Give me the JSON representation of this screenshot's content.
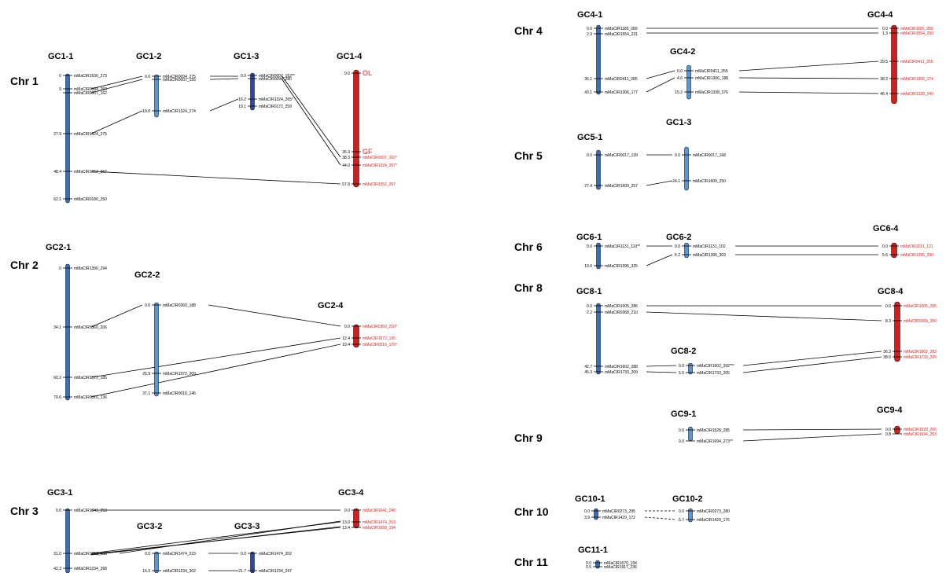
{
  "colors": {
    "group1_bar": "#3a6fb5",
    "group2_bar": "#5a97d8",
    "group3_bar": "#2a4aa8",
    "group4_bar": "#cf2020",
    "bar_outline": "#1a1a1a",
    "red_text": "#e31a1c"
  },
  "chromosomes": [
    {
      "name": "Chr 1"
    },
    {
      "name": "Chr 2"
    },
    {
      "name": "Chr 3"
    },
    {
      "name": "Chr 4"
    },
    {
      "name": "Chr 5"
    },
    {
      "name": "Chr 6"
    },
    {
      "name": "Chr 8"
    },
    {
      "name": "Chr 9"
    },
    {
      "name": "Chr 10"
    },
    {
      "name": "Chr 11"
    }
  ],
  "linkage_groups": [
    {
      "name": "GC1-1",
      "group": 1,
      "markers": [
        {
          "pos": "0",
          "label": "mMaCIR1630_273"
        },
        {
          "pos": "9",
          "label": "mMaCIR0094_269"
        },
        {
          "pos": "",
          "label": "mMaCIR0007_162"
        },
        {
          "pos": "27.9",
          "label": "mMaCIR1324_275"
        },
        {
          "pos": "48.4",
          "label": "mMaCIR1052_267"
        },
        {
          "pos": "62.1",
          "label": "mMaCIR0180_250"
        }
      ]
    },
    {
      "name": "GC1-2",
      "group": 2,
      "markers": [
        {
          "pos": "0.0",
          "label": "mMaCIR0094_275"
        },
        {
          "pos": "",
          "label": "mMaCIR0007_155"
        },
        {
          "pos": "19.8",
          "label": "mMaCIR1324_274"
        }
      ]
    },
    {
      "name": "GC1-3",
      "group": 3,
      "markers": [
        {
          "pos": "0.0",
          "label": "mMaCIR0007_152**"
        },
        {
          "pos": "",
          "label": "mMaCIR0094_280"
        },
        {
          "pos": "16.2",
          "label": "mMaCIR1324_265*"
        },
        {
          "pos": "19.1",
          "label": "mMaCIR0172_259"
        }
      ]
    },
    {
      "name": "GC1-4",
      "group": 4,
      "markers": [
        {
          "pos": "0.0",
          "label": "OL"
        },
        {
          "pos": "35.3",
          "label": "GF"
        },
        {
          "pos": "38.3",
          "label": "mMaCIR0007_162*"
        },
        {
          "pos": "44.0",
          "label": "mMaCIR1324_267*"
        },
        {
          "pos": "57.8",
          "label": "mMaCIR1052_267"
        }
      ]
    },
    {
      "name": "GC2-1",
      "group": 1,
      "markers": [
        {
          "pos": ".0",
          "label": "mMaCIR1390_294"
        },
        {
          "pos": "34.1",
          "label": "mMaCIR0360_206"
        },
        {
          "pos": "60.2",
          "label": "mMaCIR1572_185"
        },
        {
          "pos": "70.6",
          "label": "mMaCIR0016_136"
        }
      ]
    },
    {
      "name": "GC2-2",
      "group": 2,
      "markers": [
        {
          "pos": "0.0",
          "label": "mMaCIR0360_188"
        },
        {
          "pos": "25.9",
          "label": "mMaCIR1572_209"
        },
        {
          "pos": "37.1",
          "label": "mMaCIR0016_146"
        }
      ]
    },
    {
      "name": "GC2-4",
      "group": 4,
      "markers": [
        {
          "pos": "0.0",
          "label": "mMaCIR0360_210*"
        },
        {
          "pos": "12.4",
          "label": "mMaCIR1572_195"
        },
        {
          "pos": "19.4",
          "label": "mMaCIR0016_170*"
        }
      ]
    },
    {
      "name": "GC3-1",
      "group": 1,
      "markers": [
        {
          "pos": "0.0",
          "label": "mMaCIR1641_253"
        },
        {
          "pos": "31.0",
          "label": "mMaCIR1658_198"
        },
        {
          "pos": "42.3",
          "label": "mMaCIR1234_268"
        }
      ]
    },
    {
      "name": "GC3-2",
      "group": 2,
      "markers": [
        {
          "pos": "0.0",
          "label": "mMaCIR1474_223"
        },
        {
          "pos": "16.3",
          "label": "mMaCIR1234_302"
        }
      ]
    },
    {
      "name": "GC3-3",
      "group": 3,
      "markers": [
        {
          "pos": "0.0",
          "label": "mMaCIR1474_202"
        },
        {
          "pos": "21.7",
          "label": "mMaCIR1234_247"
        }
      ]
    },
    {
      "name": "GC3-4",
      "group": 4,
      "markers": [
        {
          "pos": "0.0",
          "label": "mMaCIR1641_248"
        },
        {
          "pos": "13.0",
          "label": "mMaCIR1474_213"
        },
        {
          "pos": "13.4",
          "label": "mMaCIR1658_194"
        }
      ]
    },
    {
      "name": "GC4-1",
      "group": 1,
      "markers": [
        {
          "pos": "0.0",
          "label": "mMaCIR1185_289"
        },
        {
          "pos": "2.9",
          "label": "mMaCIR1554_231"
        },
        {
          "pos": "36.1",
          "label": "mMaCIR0411_285"
        },
        {
          "pos": "43.1",
          "label": "mMaCIR1306_177"
        }
      ]
    },
    {
      "name": "GC4-2",
      "group": 2,
      "markers": [
        {
          "pos": "0.0",
          "label": "mMaCIR0411_255"
        },
        {
          "pos": "4.6",
          "label": "mMaCIR1306_188"
        },
        {
          "pos": "15.2",
          "label": "mMaCIR1338_276"
        }
      ]
    },
    {
      "name": "GC4-4",
      "group": 4,
      "markers": [
        {
          "pos": "0.0",
          "label": "mMaCIR1185_289"
        },
        {
          "pos": "1.3",
          "label": "mMaCIR1554_250"
        },
        {
          "pos": "29.5",
          "label": "mMaCIR0411_265"
        },
        {
          "pos": "38.2",
          "label": "mMaCIR1306_174"
        },
        {
          "pos": "46.4",
          "label": "mMaCIR1338_249"
        }
      ]
    },
    {
      "name": "GC5-1",
      "group": 1,
      "markers": [
        {
          "pos": "0.0",
          "label": "mMaCIR0017_139"
        },
        {
          "pos": "27.4",
          "label": "mMaCIR1609_257"
        }
      ]
    },
    {
      "name": "GC1-3",
      "group": 2,
      "markers": [
        {
          "pos": "0.0",
          "label": "mMaCIR0017_168"
        },
        {
          "pos": "24.1",
          "label": "mMaCIR1609_250"
        }
      ]
    },
    {
      "name": "GC6-1",
      "group": 1,
      "markers": [
        {
          "pos": "0.0",
          "label": "mMaCIR1131_110**"
        },
        {
          "pos": "10.6",
          "label": "mMaCIR1395_325"
        }
      ]
    },
    {
      "name": "GC6-2",
      "group": 2,
      "markers": [
        {
          "pos": "0.0",
          "label": "mMaCIR1131_102"
        },
        {
          "pos": "5.2",
          "label": "mMaCIR1395_303"
        }
      ]
    },
    {
      "name": "GC6-4",
      "group": 4,
      "markers": [
        {
          "pos": "0.0",
          "label": "mMaCIR1131_121"
        },
        {
          "pos": "5.6",
          "label": "mMaCIR1395_290"
        }
      ]
    },
    {
      "name": "GC8-1",
      "group": 1,
      "markers": [
        {
          "pos": "0.0",
          "label": "mMaCIR1005_286"
        },
        {
          "pos": "2.2",
          "label": "mMaCIR0368_210"
        },
        {
          "pos": "42.7",
          "label": "mMaCIR1602_288"
        },
        {
          "pos": "45.3",
          "label": "mMaCIR1733_209"
        }
      ]
    },
    {
      "name": "GC8-2",
      "group": 2,
      "markers": [
        {
          "pos": "0.0",
          "label": "mMaCIR1602_292***"
        },
        {
          "pos": "5.5",
          "label": "mMaCIR1733_205"
        }
      ]
    },
    {
      "name": "GC8-4",
      "group": 4,
      "markers": [
        {
          "pos": "0.0",
          "label": "mMaCIR1005_295"
        },
        {
          "pos": "8.3",
          "label": "mMaCIR0368_259"
        },
        {
          "pos": "36.3",
          "label": "mMaCIR1602_283"
        },
        {
          "pos": "38.0",
          "label": "mMaCIR1733_225"
        }
      ]
    },
    {
      "name": "GC9-1",
      "group": 2,
      "markers": [
        {
          "pos": "0.0",
          "label": "mMaCIR1528_285"
        },
        {
          "pos": "9.0",
          "label": "mMaCIR1694_273**"
        }
      ]
    },
    {
      "name": "GC9-4",
      "group": 4,
      "markers": [
        {
          "pos": "0.0",
          "label": "mMaCIR1528_256"
        },
        {
          "pos": "0.8",
          "label": "mMaCIR1694_253"
        }
      ]
    },
    {
      "name": "GC10-1",
      "group": 1,
      "markers": [
        {
          "pos": "0.0",
          "label": "mMaCIR0273_295"
        },
        {
          "pos": "3.9",
          "label": "mMaCIR1429_172"
        }
      ]
    },
    {
      "name": "GC10-2",
      "group": 2,
      "markers": [
        {
          "pos": "0.0",
          "label": "mMaCIR0273_280"
        },
        {
          "pos": "5.7",
          "label": "mMaCIR1429_176"
        }
      ]
    },
    {
      "name": "GC11-1",
      "group": 1,
      "markers": [
        {
          "pos": "0.0",
          "label": "mMaCIR1670_194"
        },
        {
          "pos": "0.5",
          "label": "mMaCIR1917_236"
        }
      ]
    }
  ]
}
